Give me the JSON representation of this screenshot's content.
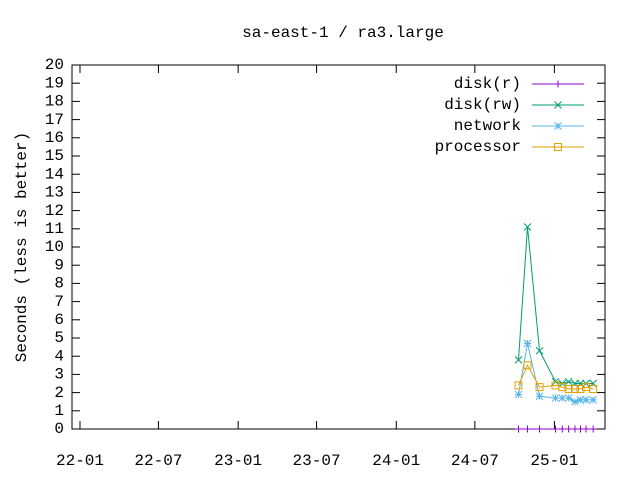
{
  "chart_data": {
    "type": "line",
    "title": "sa-east-1 / ra3.large",
    "y_label": "Seconds (less is better)",
    "x": [
      2024.773,
      2024.83,
      2024.906,
      2025.007,
      2025.05,
      2025.09,
      2025.13,
      2025.165,
      2025.2,
      2025.245
    ],
    "xlim": [
      2022.0,
      2025.32
    ],
    "xticks": [
      {
        "value": 2022.0,
        "label": "22-01"
      },
      {
        "value": 2022.496,
        "label": "22-07"
      },
      {
        "value": 2023.0,
        "label": "23-01"
      },
      {
        "value": 2023.496,
        "label": "23-07"
      },
      {
        "value": 2024.0,
        "label": "24-01"
      },
      {
        "value": 2024.497,
        "label": "24-07"
      },
      {
        "value": 2025.0,
        "label": "25-01"
      }
    ],
    "ylim": [
      0,
      20
    ],
    "yticks": [
      0,
      1,
      2,
      3,
      4,
      5,
      6,
      7,
      8,
      9,
      10,
      11,
      12,
      13,
      14,
      15,
      16,
      17,
      18,
      19,
      20
    ],
    "legend": "top-right",
    "series": [
      {
        "name": "disk(r)",
        "color": "#9400d3",
        "marker": "plus",
        "values": [
          0,
          0,
          0,
          0,
          0,
          0,
          0,
          0,
          0,
          0
        ]
      },
      {
        "name": "disk(rw)",
        "color": "#009e73",
        "marker": "cross",
        "values": [
          3.8,
          11.1,
          4.3,
          2.6,
          2.5,
          2.6,
          2.5,
          2.5,
          2.5,
          2.5
        ]
      },
      {
        "name": "network",
        "color": "#56b4e9",
        "marker": "star",
        "values": [
          1.9,
          4.7,
          1.8,
          1.7,
          1.7,
          1.7,
          1.5,
          1.6,
          1.6,
          1.6
        ]
      },
      {
        "name": "processor",
        "color": "#e69f00",
        "marker": "square",
        "values": [
          2.4,
          3.5,
          2.3,
          2.4,
          2.3,
          2.2,
          2.2,
          2.2,
          2.3,
          2.2
        ]
      }
    ]
  }
}
